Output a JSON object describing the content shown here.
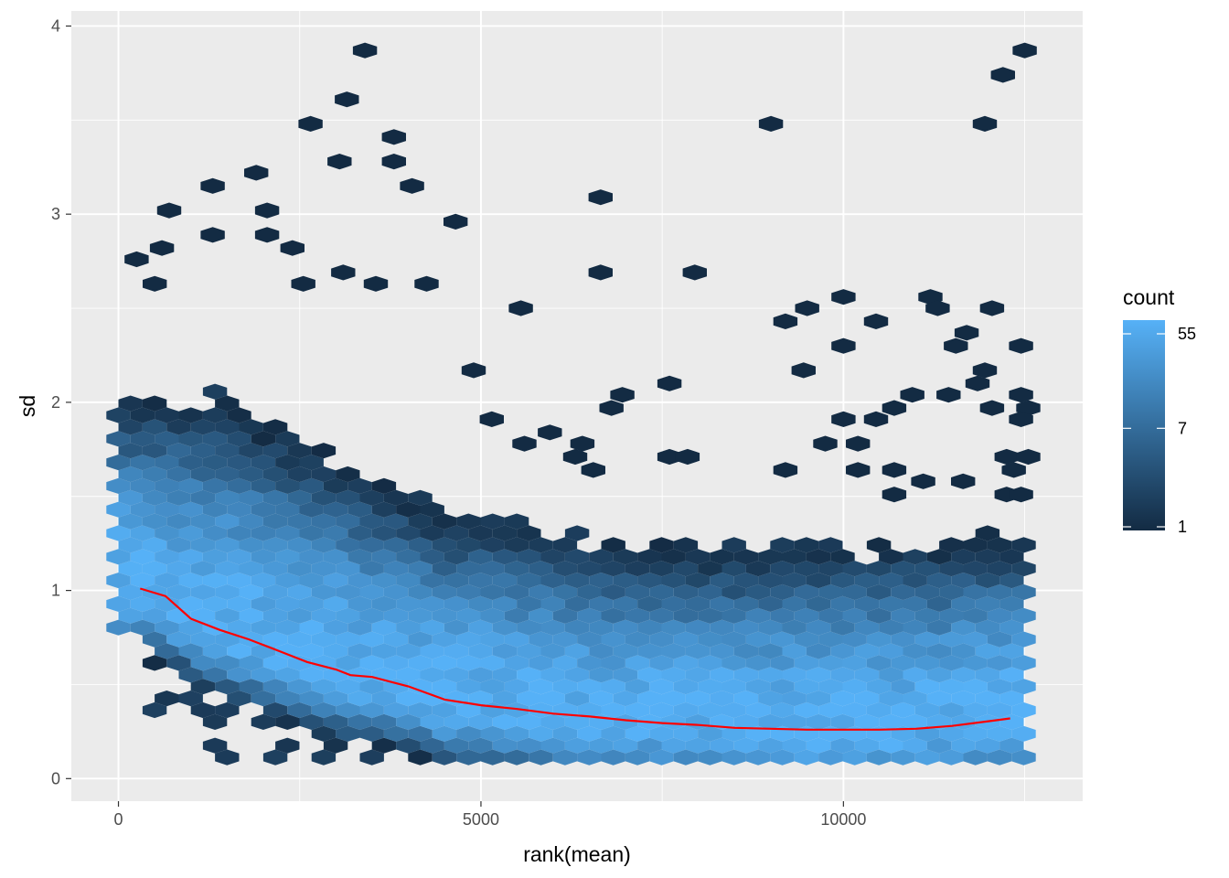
{
  "chart_data": {
    "type": "hexbin",
    "xlabel": "rank(mean)",
    "ylabel": "sd",
    "xlim": [
      -650,
      13300
    ],
    "ylim": [
      -0.12,
      4.08
    ],
    "x_ticks": [
      0,
      5000,
      10000
    ],
    "x_tick_labels": [
      "0",
      "5000",
      "10000"
    ],
    "y_ticks": [
      0,
      1,
      2,
      3,
      4
    ],
    "y_tick_labels": [
      "0",
      "1",
      "2",
      "3",
      "4"
    ],
    "grid": true,
    "legend": {
      "title": "count",
      "position": "right",
      "scale": "log",
      "breaks": [
        1,
        7,
        55
      ],
      "break_labels": [
        "1",
        "7",
        "55"
      ],
      "color_low": "#132B43",
      "color_high": "#56B1F7"
    },
    "hex_rows_summary": [
      {
        "sd_range": [
          0.05,
          0.45
        ],
        "count_level": "high (30-55)",
        "x_range": [
          400,
          12600
        ]
      },
      {
        "sd_range": [
          0.45,
          1.0
        ],
        "count_level": "medium-high (10-40)",
        "x_range": [
          0,
          12600
        ]
      },
      {
        "sd_range": [
          1.0,
          1.5
        ],
        "count_level": "medium-low (2-10)",
        "x_range": [
          0,
          6000
        ]
      },
      {
        "sd_range": [
          1.5,
          2.2
        ],
        "count_level": "low (1-5)",
        "x_range": [
          0,
          4500
        ]
      }
    ],
    "outlier_points": [
      {
        "x": 3400,
        "y": 3.87
      },
      {
        "x": 12500,
        "y": 3.87
      },
      {
        "x": 12200,
        "y": 3.74
      },
      {
        "x": 3150,
        "y": 3.61
      },
      {
        "x": 2650,
        "y": 3.48
      },
      {
        "x": 9000,
        "y": 3.48
      },
      {
        "x": 11950,
        "y": 3.48
      },
      {
        "x": 3800,
        "y": 3.41
      },
      {
        "x": 3050,
        "y": 3.28
      },
      {
        "x": 3800,
        "y": 3.28
      },
      {
        "x": 1900,
        "y": 3.22
      },
      {
        "x": 1300,
        "y": 3.15
      },
      {
        "x": 4050,
        "y": 3.15
      },
      {
        "x": 6650,
        "y": 3.09
      },
      {
        "x": 700,
        "y": 3.02
      },
      {
        "x": 2050,
        "y": 3.02
      },
      {
        "x": 4650,
        "y": 2.96
      },
      {
        "x": 1300,
        "y": 2.89
      },
      {
        "x": 2050,
        "y": 2.89
      },
      {
        "x": 600,
        "y": 2.82
      },
      {
        "x": 2400,
        "y": 2.82
      },
      {
        "x": 250,
        "y": 2.76
      },
      {
        "x": 6650,
        "y": 2.69
      },
      {
        "x": 7950,
        "y": 2.69
      },
      {
        "x": 3100,
        "y": 2.69
      },
      {
        "x": 500,
        "y": 2.63
      },
      {
        "x": 3550,
        "y": 2.63
      },
      {
        "x": 2550,
        "y": 2.63
      },
      {
        "x": 4250,
        "y": 2.63
      },
      {
        "x": 10000,
        "y": 2.56
      },
      {
        "x": 11200,
        "y": 2.56
      },
      {
        "x": 11300,
        "y": 2.5
      },
      {
        "x": 12050,
        "y": 2.5
      },
      {
        "x": 5550,
        "y": 2.5
      },
      {
        "x": 9500,
        "y": 2.5
      },
      {
        "x": 9200,
        "y": 2.43
      },
      {
        "x": 10450,
        "y": 2.43
      },
      {
        "x": 11700,
        "y": 2.37
      },
      {
        "x": 10000,
        "y": 2.3
      },
      {
        "x": 11550,
        "y": 2.3
      },
      {
        "x": 12450,
        "y": 2.3
      },
      {
        "x": 4900,
        "y": 2.17
      },
      {
        "x": 9450,
        "y": 2.17
      },
      {
        "x": 11950,
        "y": 2.17
      },
      {
        "x": 7600,
        "y": 2.1
      },
      {
        "x": 11850,
        "y": 2.1
      },
      {
        "x": 6950,
        "y": 2.04
      },
      {
        "x": 10950,
        "y": 2.04
      },
      {
        "x": 11450,
        "y": 2.04
      },
      {
        "x": 12450,
        "y": 2.04
      },
      {
        "x": 6800,
        "y": 1.97
      },
      {
        "x": 10700,
        "y": 1.97
      },
      {
        "x": 12050,
        "y": 1.97
      },
      {
        "x": 12550,
        "y": 1.97
      },
      {
        "x": 10000,
        "y": 1.91
      },
      {
        "x": 10450,
        "y": 1.91
      },
      {
        "x": 5150,
        "y": 1.91
      },
      {
        "x": 12450,
        "y": 1.91
      },
      {
        "x": 5950,
        "y": 1.84
      },
      {
        "x": 9750,
        "y": 1.78
      },
      {
        "x": 10200,
        "y": 1.78
      },
      {
        "x": 5600,
        "y": 1.78
      },
      {
        "x": 6400,
        "y": 1.78
      },
      {
        "x": 7600,
        "y": 1.71
      },
      {
        "x": 7850,
        "y": 1.71
      },
      {
        "x": 12250,
        "y": 1.71
      },
      {
        "x": 12550,
        "y": 1.71
      },
      {
        "x": 6300,
        "y": 1.71
      },
      {
        "x": 9200,
        "y": 1.64
      },
      {
        "x": 10200,
        "y": 1.64
      },
      {
        "x": 10700,
        "y": 1.64
      },
      {
        "x": 12350,
        "y": 1.64
      },
      {
        "x": 6550,
        "y": 1.64
      },
      {
        "x": 11100,
        "y": 1.58
      },
      {
        "x": 11650,
        "y": 1.58
      },
      {
        "x": 10700,
        "y": 1.51
      },
      {
        "x": 12250,
        "y": 1.51
      },
      {
        "x": 12450,
        "y": 1.51
      }
    ],
    "trend_line": {
      "color": "#FF0000",
      "points": [
        [
          300,
          1.01
        ],
        [
          650,
          0.97
        ],
        [
          1000,
          0.85
        ],
        [
          1400,
          0.79
        ],
        [
          1800,
          0.74
        ],
        [
          2200,
          0.68
        ],
        [
          2600,
          0.62
        ],
        [
          3000,
          0.58
        ],
        [
          3200,
          0.55
        ],
        [
          3500,
          0.54
        ],
        [
          4000,
          0.49
        ],
        [
          4500,
          0.42
        ],
        [
          5000,
          0.39
        ],
        [
          5500,
          0.37
        ],
        [
          6000,
          0.345
        ],
        [
          6500,
          0.33
        ],
        [
          7000,
          0.31
        ],
        [
          7500,
          0.295
        ],
        [
          8000,
          0.285
        ],
        [
          8500,
          0.27
        ],
        [
          9000,
          0.265
        ],
        [
          9500,
          0.26
        ],
        [
          10000,
          0.26
        ],
        [
          10500,
          0.26
        ],
        [
          11000,
          0.265
        ],
        [
          11500,
          0.28
        ],
        [
          12000,
          0.305
        ],
        [
          12300,
          0.32
        ]
      ]
    }
  }
}
